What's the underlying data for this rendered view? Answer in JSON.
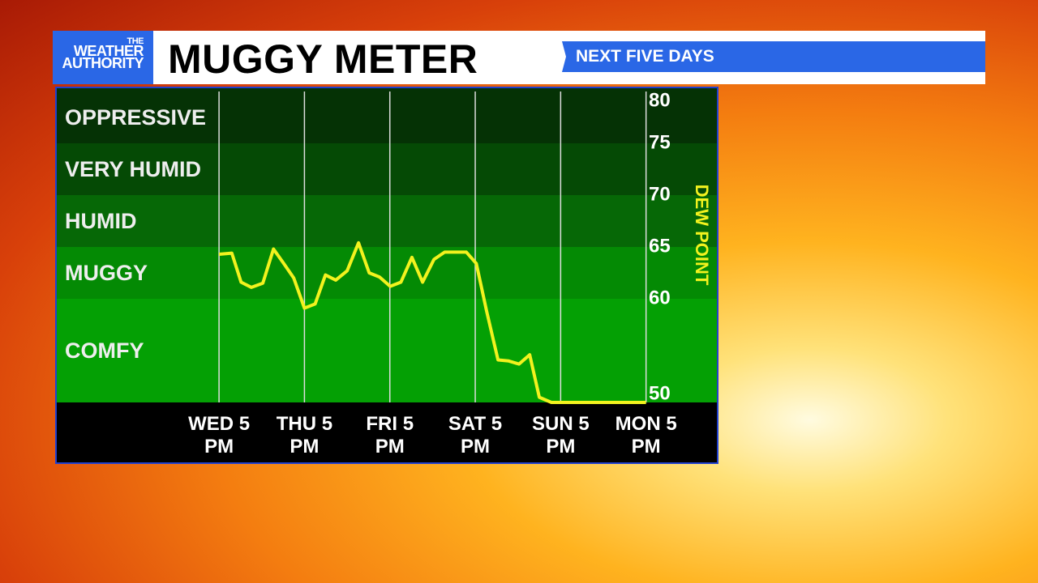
{
  "logo": [
    "THE",
    "WEATHER",
    "AUTHORITY"
  ],
  "chart_data": {
    "type": "line",
    "title": "MUGGY METER",
    "subtitle": "NEXT FIVE DAYS",
    "y_label": "DEW POINT",
    "color": "#f2f21e",
    "grid": true,
    "x": [
      0,
      3.6,
      6.2,
      9.1,
      12.3,
      15.3,
      18.2,
      21,
      24,
      27,
      29.9,
      32.8,
      36,
      39.2,
      42.2,
      45.1,
      48.1,
      51.1,
      54.2,
      57.2,
      60.4,
      63.4,
      66.3,
      69.5,
      72.3,
      75.2,
      78.4,
      81.4,
      84.3,
      87.3,
      90,
      93.4,
      96.4,
      120
    ],
    "values": [
      64.3,
      64.4,
      61.6,
      61.1,
      61.5,
      64.8,
      63.4,
      62,
      59.1,
      59.5,
      62.3,
      61.8,
      62.7,
      65.4,
      62.5,
      62.1,
      61.2,
      61.6,
      64,
      61.6,
      63.8,
      64.5,
      64.5,
      64.5,
      63.4,
      58.8,
      54.1,
      54,
      53.7,
      54.6,
      50.5,
      50,
      50,
      50
    ],
    "xlim": [
      -45.6,
      139.9
    ],
    "xticks": [
      {
        "value": 0,
        "label": "WED 5 PM"
      },
      {
        "value": 24,
        "label": "THU 5 PM"
      },
      {
        "value": 48,
        "label": "FRI 5 PM"
      },
      {
        "value": 72,
        "label": "SAT 5 PM"
      },
      {
        "value": 96,
        "label": "SUN 5 PM"
      },
      {
        "value": 120,
        "label": "MON 5 PM"
      }
    ],
    "ylim": [
      50,
      80
    ],
    "yticks": [
      50,
      60,
      65,
      70,
      75,
      80
    ],
    "bands": [
      {
        "label": "COMFY",
        "from": 50,
        "to": 60,
        "color": "#04a004"
      },
      {
        "label": "MUGGY",
        "from": 60,
        "to": 65,
        "color": "#048a04"
      },
      {
        "label": "HUMID",
        "from": 65,
        "to": 70,
        "color": "#066806"
      },
      {
        "label": "VERY HUMID",
        "from": 70,
        "to": 75,
        "color": "#054a05"
      },
      {
        "label": "OPPRESSIVE",
        "from": 75,
        "to": 80,
        "color": "#053205"
      }
    ]
  }
}
